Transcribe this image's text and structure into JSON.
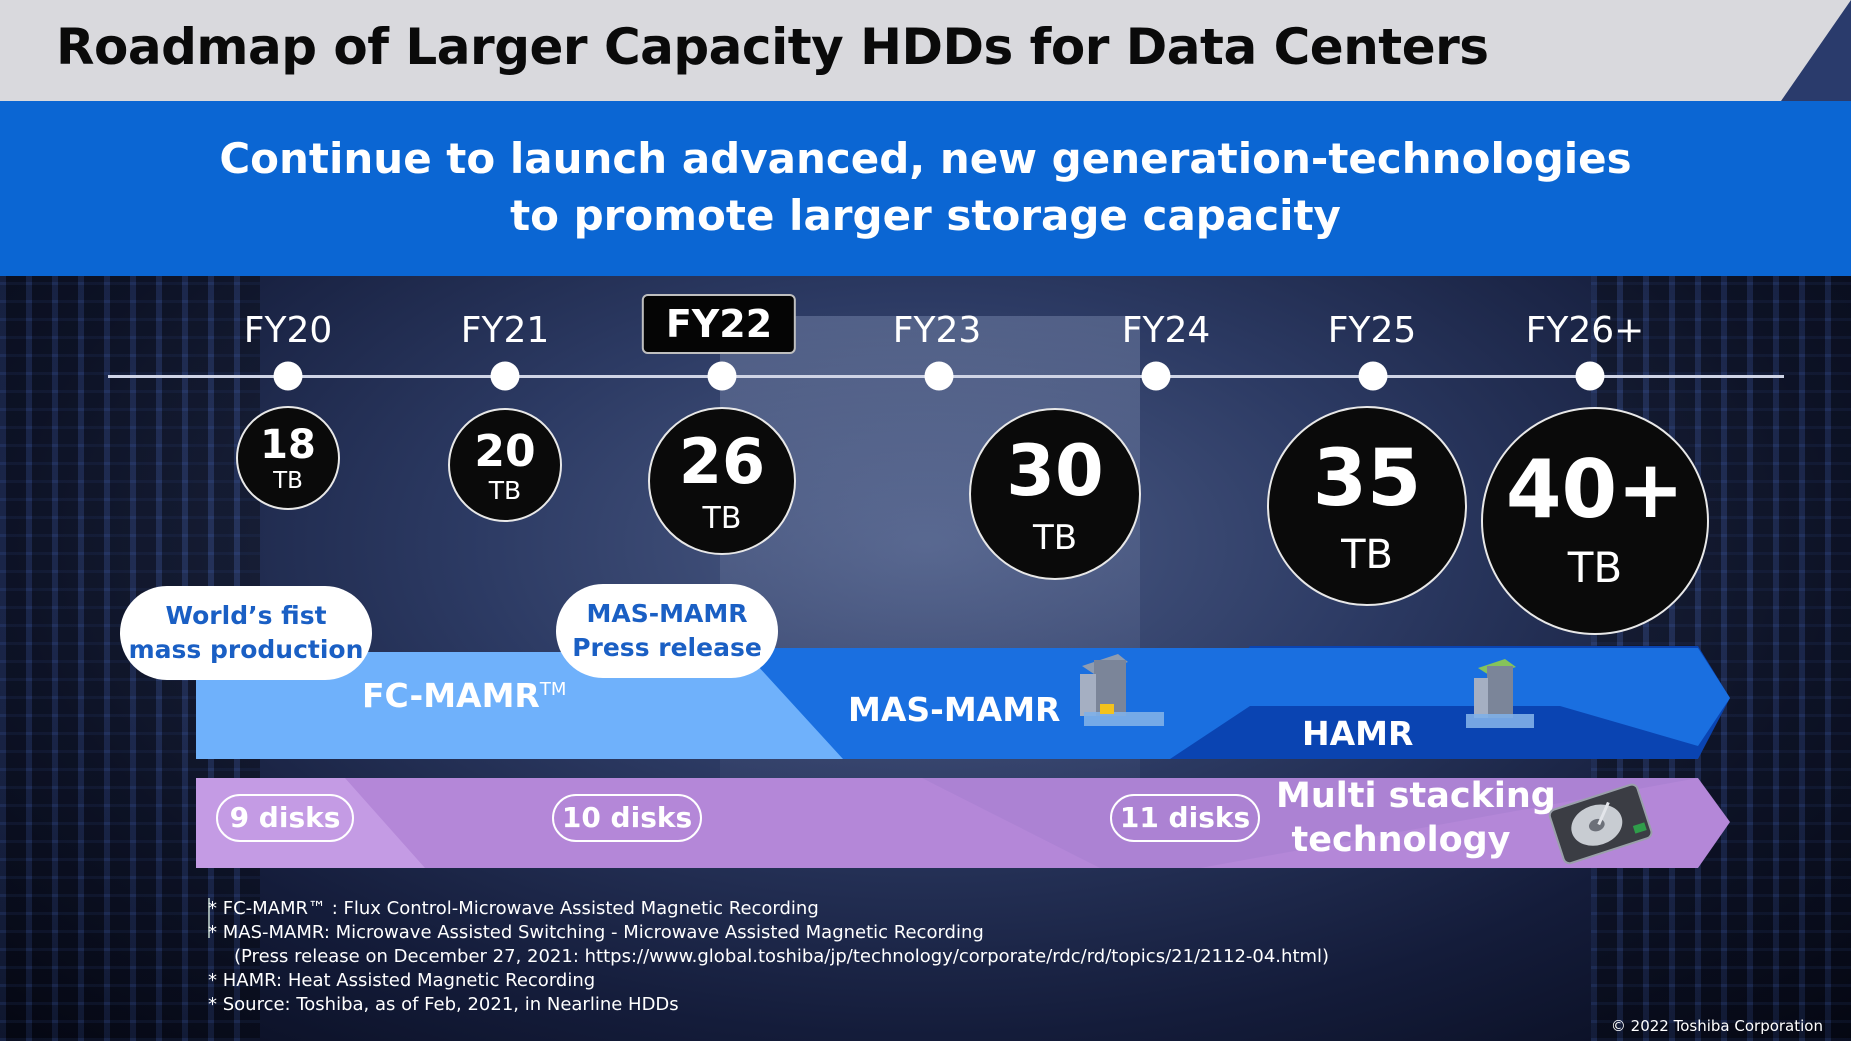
{
  "title": "Roadmap of Larger Capacity HDDs for Data Centers",
  "banner": {
    "line1": "Continue to launch advanced, new generation-technologies",
    "line2": "to promote larger storage capacity"
  },
  "timeline": {
    "years": [
      {
        "label": "FY20",
        "highlighted": false
      },
      {
        "label": "FY21",
        "highlighted": false
      },
      {
        "label": "FY22",
        "highlighted": true
      },
      {
        "label": "FY23",
        "highlighted": false
      },
      {
        "label": "FY24",
        "highlighted": false
      },
      {
        "label": "FY25",
        "highlighted": false
      },
      {
        "label": "FY26+",
        "highlighted": false
      }
    ],
    "capacities": [
      {
        "value": "18",
        "unit": "TB"
      },
      {
        "value": "20",
        "unit": "TB"
      },
      {
        "value": "26",
        "unit": "TB"
      },
      {
        "value": "30",
        "unit": "TB"
      },
      {
        "value": "35",
        "unit": "TB"
      },
      {
        "value": "40+",
        "unit": "TB"
      }
    ]
  },
  "callouts": {
    "fc_mamr": {
      "line1": "World’s fist",
      "line2": "mass production"
    },
    "mas_mamr": {
      "line1": "MAS-MAMR",
      "line2": "Press release"
    }
  },
  "technologies": {
    "fc_mamr": "FC-MAMR",
    "fc_mamr_tm": "TM",
    "mas_mamr": "MAS-MAMR",
    "hamr": "HAMR"
  },
  "disks": {
    "d9": "9 disks",
    "d10": "10 disks",
    "d11": "11 disks",
    "multi_line1": "Multi stacking",
    "multi_line2": "technology"
  },
  "footnotes": {
    "n1": "* FC-MAMR™ : Flux Control-Microwave Assisted Magnetic Recording",
    "n2": "* MAS-MAMR: Microwave Assisted Switching - Microwave Assisted Magnetic Recording",
    "n3": "(Press release on December 27, 2021: https://www.global.toshiba/jp/technology/corporate/rdc/rd/topics/21/2112-04.html)",
    "n4": "* HAMR: Heat Assisted Magnetic Recording",
    "n5": "* Source: Toshiba, as of Feb, 2021, in Nearline HDDs"
  },
  "copyright": "© 2022 Toshiba Corporation",
  "colors": {
    "banner_blue": "#0b66d3",
    "fc_mamr_band": "#6fb1fb",
    "mas_mamr_band": "#1a6fe0",
    "hamr_band": "#0a44b2",
    "disk_band": "#b487d8",
    "callout_text": "#1a5fc4"
  },
  "icons": [
    "recording-head-icon",
    "recording-head-icon",
    "hard-drive-icon"
  ]
}
